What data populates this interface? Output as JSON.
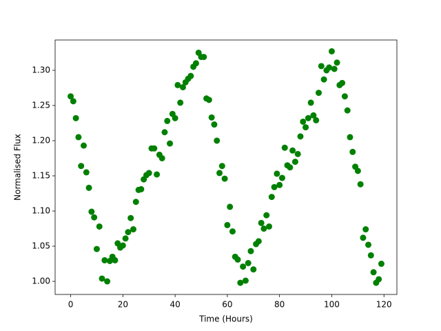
{
  "chart_data": {
    "type": "scatter",
    "xlabel": "Time (Hours)",
    "ylabel": "Normalised Flux",
    "series": [
      {
        "color": "#008000",
        "x": [
          0,
          1,
          2,
          3,
          4,
          5,
          6,
          7,
          8,
          9,
          10,
          11,
          12,
          13,
          14,
          15,
          16,
          17,
          18,
          19,
          20,
          21,
          22,
          23,
          24,
          25,
          26,
          27,
          28,
          29,
          30,
          31,
          32,
          33,
          34,
          35,
          36,
          37,
          38,
          39,
          40,
          41,
          42,
          43,
          44,
          45,
          46,
          47,
          48,
          49,
          50,
          51,
          52,
          53,
          54,
          55,
          56,
          57,
          58,
          59,
          60,
          61,
          62,
          63,
          64,
          65,
          66,
          67,
          68,
          69,
          70,
          71,
          72,
          73,
          74,
          75,
          76,
          77,
          78,
          79,
          80,
          81,
          82,
          83,
          84,
          85,
          86,
          87,
          88,
          89,
          90,
          91,
          92,
          93,
          94,
          95,
          96,
          97,
          98,
          99,
          100,
          101,
          102,
          103,
          104,
          105,
          106,
          107,
          108,
          109,
          110,
          111,
          112,
          113,
          114,
          115,
          116,
          117,
          118,
          119
        ],
        "values": [
          1.263,
          1.256,
          1.232,
          1.205,
          1.164,
          1.193,
          1.155,
          1.133,
          1.099,
          1.091,
          1.046,
          1.078,
          1.004,
          1.03,
          1.0,
          1.029,
          1.035,
          1.03,
          1.054,
          1.048,
          1.051,
          1.061,
          1.07,
          1.09,
          1.074,
          1.113,
          1.13,
          1.131,
          1.145,
          1.151,
          1.154,
          1.189,
          1.189,
          1.152,
          1.18,
          1.175,
          1.212,
          1.228,
          1.196,
          1.238,
          1.232,
          1.279,
          1.254,
          1.276,
          1.283,
          1.288,
          1.292,
          1.305,
          1.31,
          1.325,
          1.319,
          1.319,
          1.26,
          1.258,
          1.233,
          1.223,
          1.2,
          1.154,
          1.164,
          1.146,
          1.08,
          1.106,
          1.071,
          1.035,
          1.031,
          0.998,
          1.021,
          1.001,
          1.026,
          1.043,
          1.017,
          1.053,
          1.057,
          1.083,
          1.075,
          1.094,
          1.078,
          1.12,
          1.134,
          1.153,
          1.137,
          1.147,
          1.19,
          1.165,
          1.162,
          1.186,
          1.17,
          1.181,
          1.206,
          1.227,
          1.219,
          1.232,
          1.254,
          1.236,
          1.229,
          1.268,
          1.306,
          1.287,
          1.3,
          1.304,
          1.327,
          1.302,
          1.311,
          1.279,
          1.282,
          1.263,
          1.243,
          1.205,
          1.184,
          1.163,
          1.157,
          1.138,
          1.062,
          1.074,
          1.052,
          1.037,
          1.013,
          0.998,
          1.003,
          1.025
        ]
      }
    ],
    "xlim": [
      -5.95,
      124.95
    ],
    "ylim": [
      0.9814,
      1.3431
    ],
    "xticks": [
      0,
      20,
      40,
      60,
      80,
      100,
      120
    ],
    "yticks": [
      {
        "value": 1,
        "label": "1.00"
      },
      1.05,
      {
        "value": 1.1,
        "label": "1.10"
      },
      1.15,
      {
        "value": 1.2,
        "label": "1.20"
      },
      1.25,
      {
        "value": 1.3,
        "label": "1.30"
      }
    ]
  }
}
